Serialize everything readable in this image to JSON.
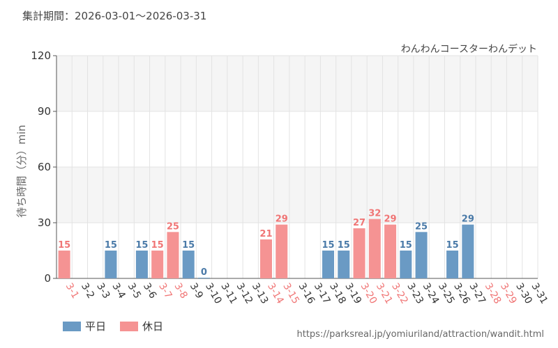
{
  "header": {
    "period_label": "集計期間：2026-03-01～2026-03-31",
    "attraction_name": "わんわんコースターわんデット"
  },
  "footer": {
    "source_url": "https://parksreal.jp/yomiuriland/attraction/wandit.html"
  },
  "colors": {
    "weekday": "#6a9ac4",
    "holiday": "#f59393",
    "weekday_text": "#4a7aa8",
    "holiday_text": "#f07575"
  },
  "chart_data": {
    "type": "bar",
    "title": "",
    "xlabel": "",
    "ylabel": "待ち時間（分）min",
    "ylim": [
      0,
      120
    ],
    "yticks": [
      0,
      30,
      60,
      90,
      120
    ],
    "grid": true,
    "legend": [
      {
        "key": "weekday",
        "label": "平日"
      },
      {
        "key": "holiday",
        "label": "休日"
      }
    ],
    "categories": [
      "3-1",
      "3-2",
      "3-3",
      "3-4",
      "3-5",
      "3-6",
      "3-7",
      "3-8",
      "3-9",
      "3-10",
      "3-11",
      "3-12",
      "3-13",
      "3-14",
      "3-15",
      "3-16",
      "3-17",
      "3-18",
      "3-19",
      "3-20",
      "3-21",
      "3-22",
      "3-23",
      "3-24",
      "3-25",
      "3-26",
      "3-27",
      "3-28",
      "3-29",
      "3-30",
      "3-31"
    ],
    "day_type": [
      "holiday",
      "weekday",
      "weekday",
      "weekday",
      "weekday",
      "weekday",
      "holiday",
      "holiday",
      "weekday",
      "weekday",
      "weekday",
      "weekday",
      "weekday",
      "holiday",
      "holiday",
      "weekday",
      "weekday",
      "weekday",
      "weekday",
      "holiday",
      "holiday",
      "holiday",
      "weekday",
      "weekday",
      "weekday",
      "weekday",
      "weekday",
      "holiday",
      "holiday",
      "weekday",
      "weekday"
    ],
    "values": [
      15,
      null,
      null,
      15,
      null,
      15,
      15,
      25,
      15,
      0,
      null,
      null,
      null,
      21,
      29,
      null,
      null,
      15,
      15,
      27,
      32,
      29,
      15,
      25,
      null,
      15,
      29,
      null,
      null,
      null,
      null
    ]
  }
}
